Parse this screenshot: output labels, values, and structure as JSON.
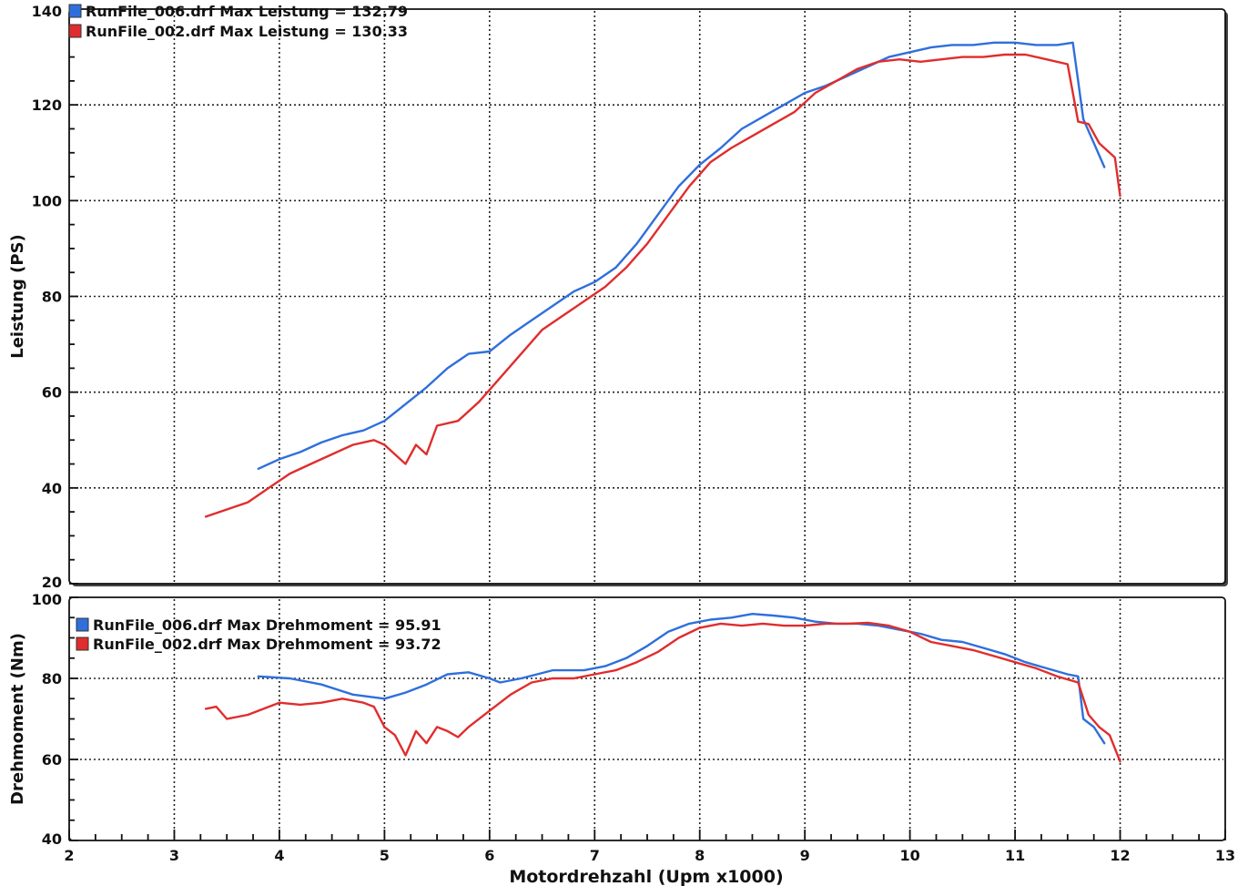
{
  "chart_data": [
    {
      "type": "line",
      "title": "",
      "ylabel": "Leistung (PS)",
      "xlim": [
        2,
        13
      ],
      "ylim": [
        20,
        140
      ],
      "yticks": [
        20,
        40,
        60,
        80,
        100,
        120,
        140
      ],
      "grid": true,
      "legend_position": "top-left",
      "series": [
        {
          "name": "RunFile_006.drf Max Leistung = 132.79",
          "color": "#2f6fdc",
          "points": [
            [
              3.8,
              44
            ],
            [
              4.0,
              46
            ],
            [
              4.2,
              47.5
            ],
            [
              4.4,
              49.5
            ],
            [
              4.6,
              51
            ],
            [
              4.8,
              52
            ],
            [
              5.0,
              54
            ],
            [
              5.2,
              57.5
            ],
            [
              5.4,
              61
            ],
            [
              5.6,
              65
            ],
            [
              5.8,
              68
            ],
            [
              6.0,
              68.5
            ],
            [
              6.2,
              72
            ],
            [
              6.4,
              75
            ],
            [
              6.6,
              78
            ],
            [
              6.8,
              81
            ],
            [
              7.0,
              83
            ],
            [
              7.2,
              86
            ],
            [
              7.4,
              91
            ],
            [
              7.6,
              97
            ],
            [
              7.8,
              103
            ],
            [
              8.0,
              107.5
            ],
            [
              8.2,
              111
            ],
            [
              8.4,
              115
            ],
            [
              8.6,
              117.5
            ],
            [
              8.8,
              120
            ],
            [
              9.0,
              122.5
            ],
            [
              9.2,
              124
            ],
            [
              9.4,
              126
            ],
            [
              9.6,
              128
            ],
            [
              9.8,
              130
            ],
            [
              10.0,
              131
            ],
            [
              10.2,
              132
            ],
            [
              10.4,
              132.5
            ],
            [
              10.6,
              132.5
            ],
            [
              10.8,
              133
            ],
            [
              11.0,
              133
            ],
            [
              11.2,
              132.5
            ],
            [
              11.4,
              132.5
            ],
            [
              11.55,
              133
            ],
            [
              11.6,
              125
            ],
            [
              11.65,
              117
            ],
            [
              11.75,
              112
            ],
            [
              11.85,
              107
            ]
          ]
        },
        {
          "name": "RunFile_002.drf Max Leistung = 130.33",
          "color": "#e02d2d",
          "points": [
            [
              3.3,
              34
            ],
            [
              3.5,
              35.5
            ],
            [
              3.7,
              37
            ],
            [
              3.9,
              40
            ],
            [
              4.1,
              43
            ],
            [
              4.3,
              45
            ],
            [
              4.5,
              47
            ],
            [
              4.7,
              49
            ],
            [
              4.9,
              50
            ],
            [
              5.0,
              49
            ],
            [
              5.1,
              47
            ],
            [
              5.2,
              45
            ],
            [
              5.3,
              49
            ],
            [
              5.4,
              47
            ],
            [
              5.5,
              53
            ],
            [
              5.7,
              54
            ],
            [
              5.9,
              58
            ],
            [
              6.1,
              63
            ],
            [
              6.3,
              68
            ],
            [
              6.5,
              73
            ],
            [
              6.7,
              76
            ],
            [
              6.9,
              79
            ],
            [
              7.1,
              82
            ],
            [
              7.3,
              86
            ],
            [
              7.5,
              91
            ],
            [
              7.7,
              97
            ],
            [
              7.9,
              103
            ],
            [
              8.1,
              108
            ],
            [
              8.3,
              111
            ],
            [
              8.5,
              113.5
            ],
            [
              8.7,
              116
            ],
            [
              8.9,
              118.5
            ],
            [
              9.1,
              122.5
            ],
            [
              9.3,
              125
            ],
            [
              9.5,
              127.5
            ],
            [
              9.7,
              129
            ],
            [
              9.9,
              129.5
            ],
            [
              10.1,
              129
            ],
            [
              10.3,
              129.5
            ],
            [
              10.5,
              130
            ],
            [
              10.7,
              130
            ],
            [
              10.9,
              130.5
            ],
            [
              11.1,
              130.5
            ],
            [
              11.3,
              129.5
            ],
            [
              11.5,
              128.5
            ],
            [
              11.6,
              116.5
            ],
            [
              11.7,
              116
            ],
            [
              11.8,
              112
            ],
            [
              11.95,
              109
            ],
            [
              12.0,
              101
            ]
          ]
        }
      ]
    },
    {
      "type": "line",
      "title": "",
      "xlabel": "Motordrehzahl (Upm x1000)",
      "ylabel": "Drehmoment (Nm)",
      "xlim": [
        2,
        13
      ],
      "ylim": [
        40,
        100
      ],
      "xticks": [
        2,
        3,
        4,
        5,
        6,
        7,
        8,
        9,
        10,
        11,
        12,
        13
      ],
      "yticks": [
        40,
        60,
        80,
        100
      ],
      "grid": true,
      "legend_position": "top-left",
      "series": [
        {
          "name": "RunFile_006.drf Max Drehmoment = 95.91",
          "color": "#2f6fdc",
          "points": [
            [
              3.8,
              80.5
            ],
            [
              4.1,
              80
            ],
            [
              4.4,
              78.5
            ],
            [
              4.7,
              76
            ],
            [
              5.0,
              75
            ],
            [
              5.2,
              76.5
            ],
            [
              5.4,
              78.5
            ],
            [
              5.6,
              81
            ],
            [
              5.8,
              81.5
            ],
            [
              6.0,
              80
            ],
            [
              6.1,
              79
            ],
            [
              6.3,
              80
            ],
            [
              6.6,
              82
            ],
            [
              6.9,
              82
            ],
            [
              7.1,
              83
            ],
            [
              7.3,
              85
            ],
            [
              7.5,
              88
            ],
            [
              7.7,
              91.5
            ],
            [
              7.9,
              93.5
            ],
            [
              8.1,
              94.5
            ],
            [
              8.3,
              95
            ],
            [
              8.5,
              95.9
            ],
            [
              8.7,
              95.5
            ],
            [
              8.9,
              95
            ],
            [
              9.1,
              94
            ],
            [
              9.3,
              93.5
            ],
            [
              9.5,
              93.5
            ],
            [
              9.7,
              93
            ],
            [
              9.9,
              92
            ],
            [
              10.1,
              91
            ],
            [
              10.3,
              89.5
            ],
            [
              10.5,
              89
            ],
            [
              10.7,
              87.5
            ],
            [
              10.9,
              86
            ],
            [
              11.1,
              84
            ],
            [
              11.3,
              82.5
            ],
            [
              11.5,
              81
            ],
            [
              11.6,
              80.5
            ],
            [
              11.65,
              70
            ],
            [
              11.75,
              68
            ],
            [
              11.85,
              64
            ]
          ]
        },
        {
          "name": "RunFile_002.drf Max Drehmoment = 93.72",
          "color": "#e02d2d",
          "points": [
            [
              3.3,
              72.5
            ],
            [
              3.4,
              73
            ],
            [
              3.5,
              70
            ],
            [
              3.7,
              71
            ],
            [
              3.9,
              73
            ],
            [
              4.0,
              74
            ],
            [
              4.2,
              73.5
            ],
            [
              4.4,
              74
            ],
            [
              4.6,
              75
            ],
            [
              4.8,
              74
            ],
            [
              4.9,
              73
            ],
            [
              5.0,
              68
            ],
            [
              5.1,
              66
            ],
            [
              5.2,
              61
            ],
            [
              5.3,
              67
            ],
            [
              5.4,
              64
            ],
            [
              5.5,
              68
            ],
            [
              5.6,
              67
            ],
            [
              5.7,
              65.5
            ],
            [
              5.8,
              68
            ],
            [
              6.0,
              72
            ],
            [
              6.2,
              76
            ],
            [
              6.4,
              79
            ],
            [
              6.6,
              80
            ],
            [
              6.8,
              80
            ],
            [
              7.0,
              81
            ],
            [
              7.2,
              82
            ],
            [
              7.4,
              84
            ],
            [
              7.6,
              86.5
            ],
            [
              7.8,
              90
            ],
            [
              8.0,
              92.5
            ],
            [
              8.2,
              93.5
            ],
            [
              8.4,
              93
            ],
            [
              8.6,
              93.5
            ],
            [
              8.8,
              93
            ],
            [
              9.0,
              93
            ],
            [
              9.2,
              93.5
            ],
            [
              9.4,
              93.5
            ],
            [
              9.6,
              93.7
            ],
            [
              9.8,
              93
            ],
            [
              10.0,
              91.5
            ],
            [
              10.2,
              89
            ],
            [
              10.4,
              88
            ],
            [
              10.6,
              87
            ],
            [
              10.8,
              85.5
            ],
            [
              11.0,
              84
            ],
            [
              11.2,
              82.5
            ],
            [
              11.4,
              80.5
            ],
            [
              11.6,
              79
            ],
            [
              11.7,
              71
            ],
            [
              11.8,
              68
            ],
            [
              11.9,
              66
            ],
            [
              12.0,
              59.5
            ]
          ]
        }
      ]
    }
  ]
}
